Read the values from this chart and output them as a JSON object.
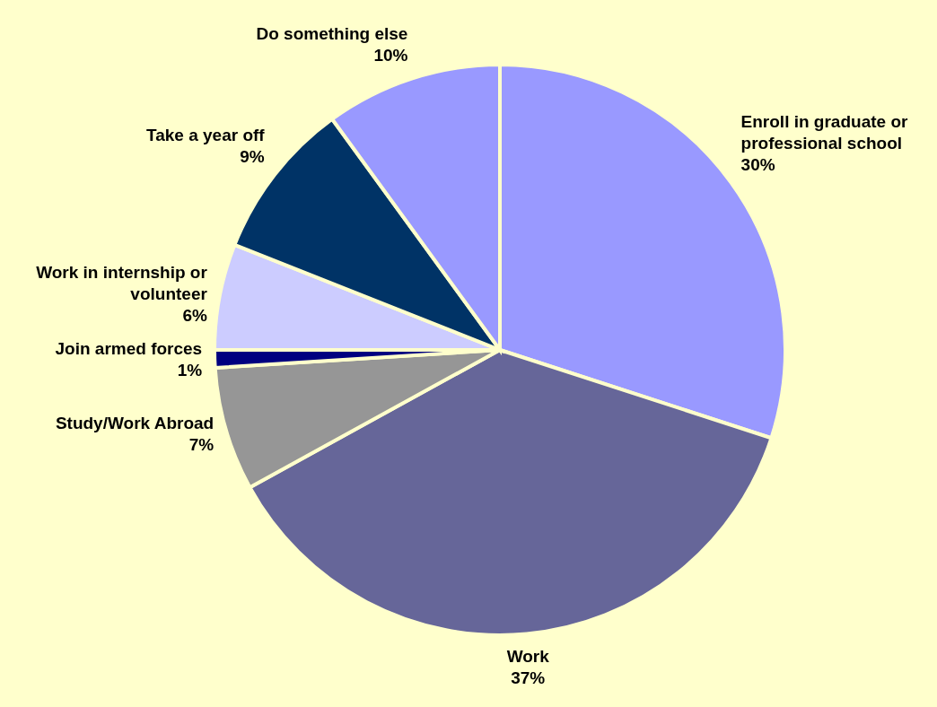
{
  "chart_data": {
    "type": "pie",
    "categories": [
      "Enroll in graduate or professional school",
      "Work",
      "Study/Work Abroad",
      "Join armed forces",
      "Work in internship or volunteer",
      "Take a year off",
      "Do something else"
    ],
    "values": [
      30,
      37,
      7,
      1,
      6,
      9,
      10
    ],
    "colors": [
      "#9999ff",
      "#666699",
      "#969696",
      "#000080",
      "#ccccff",
      "#003366",
      "#9999ff"
    ],
    "value_labels": [
      "30%",
      "37%",
      "7%",
      "1%",
      "6%",
      "9%",
      "10%"
    ]
  }
}
